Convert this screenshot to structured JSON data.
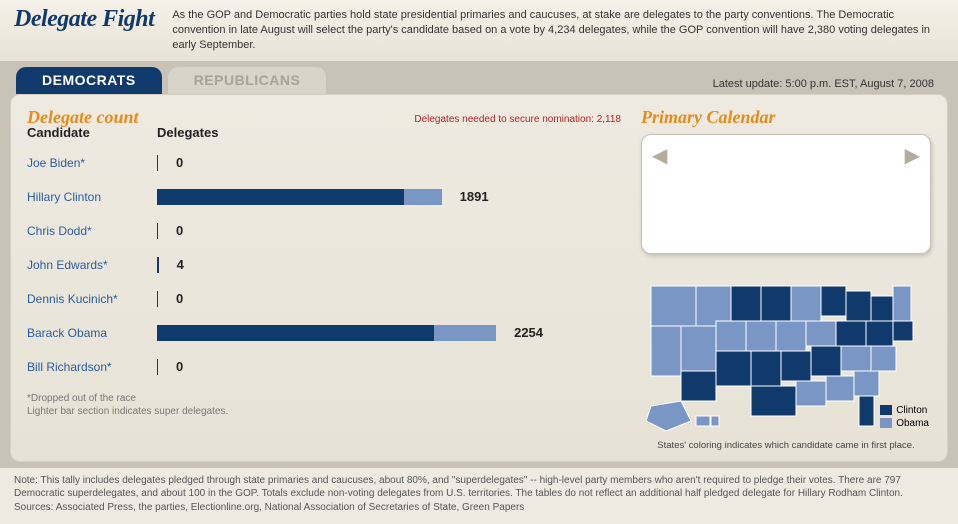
{
  "header": {
    "title": "Delegate Fight",
    "blurb": "As the GOP and Democratic parties hold state presidential primaries and caucuses, at stake are delegates to the party conventions. The Democratic convention in late August will select the party's candidate based on a vote by 4,234 delegates, while the GOP convention will have 2,380 voting delegates in early September."
  },
  "tabs": {
    "democrats": "DEMOCRATS",
    "republicans": "REPUBLICANS",
    "active": "democrats",
    "update": "Latest update: 5:00 p.m. EST, August 7, 2008"
  },
  "delegates": {
    "title": "Delegate count",
    "col_candidate": "Candidate",
    "col_delegates": "Delegates",
    "secure_note": "Delegates needed to secure nomination: 2,118",
    "max_scale": 2400,
    "rows": [
      {
        "name": "Joe Biden*",
        "pledged": 0,
        "super": 0,
        "total": 0
      },
      {
        "name": "Hillary Clinton",
        "pledged": 1640,
        "super": 251,
        "total": 1891
      },
      {
        "name": "Chris Dodd*",
        "pledged": 0,
        "super": 0,
        "total": 0
      },
      {
        "name": "John Edwards*",
        "pledged": 4,
        "super": 0,
        "total": 4
      },
      {
        "name": "Dennis Kucinich*",
        "pledged": 0,
        "super": 0,
        "total": 0
      },
      {
        "name": "Barack Obama",
        "pledged": 1840,
        "super": 414,
        "total": 2254
      },
      {
        "name": "Bill Richardson*",
        "pledged": 0,
        "super": 0,
        "total": 0
      }
    ],
    "foot1": "*Dropped out of the race",
    "foot2": "Lighter bar section indicates super delegates.",
    "colors": {
      "pledged": "#103a6c",
      "super": "#7a96c4"
    }
  },
  "calendar": {
    "title": "Primary Calendar"
  },
  "map": {
    "legend": [
      {
        "label": "Clinton",
        "color": "#103a6c"
      },
      {
        "label": "Obama",
        "color": "#7a96c4"
      }
    ],
    "caption": "States' coloring indicates which candidate came in first place."
  },
  "bottom_note": "Note: This tally includes delegates pledged through state primaries and caucuses, about 80%, and \"superdelegates\" -- high-level party members who aren't required to pledge their votes. There are 797 Democratic superdelegates, and about 100 in the GOP. Totals exclude non-voting delegates from U.S. territories. The tables do not reflect an additional half pledged delegate for Hillary Rodham Clinton.\nSources: Associated Press, the parties, Electionline.org, National Association of Secretaries of State, Green Papers"
}
